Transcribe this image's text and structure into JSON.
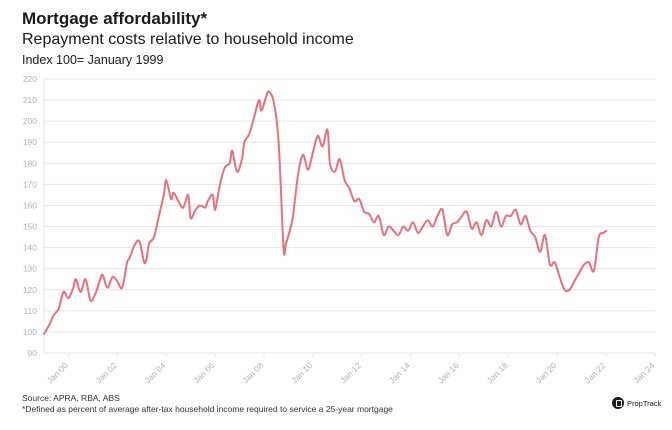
{
  "header": {
    "title": "Mortgage affordability*",
    "subtitle": "Repayment costs relative to household income",
    "note": "Index 100= January 1999"
  },
  "footer": {
    "source": "Source: APRA, RBA, ABS",
    "footnote": "*Defined as percent of average after-tax household income required to service a 25-year mortgage",
    "brand": "PropTrack"
  },
  "colors": {
    "line": "#e8707a",
    "grid": "#e6e6e6",
    "tick": "#b3b3b3"
  },
  "chart_data": {
    "type": "line",
    "title": "Mortgage affordability*",
    "subtitle": "Repayment costs relative to household income",
    "xlabel": "",
    "ylabel": "",
    "ylim": [
      90,
      220
    ],
    "xlim": [
      1999.0,
      2024.0
    ],
    "y_ticks": [
      90,
      100,
      110,
      120,
      130,
      140,
      150,
      160,
      170,
      180,
      190,
      200,
      210,
      220
    ],
    "x_ticks": [
      {
        "x": 2000,
        "label": "Jan 00"
      },
      {
        "x": 2002,
        "label": "Jan 02"
      },
      {
        "x": 2004,
        "label": "Jan 04"
      },
      {
        "x": 2006,
        "label": "Jan 06"
      },
      {
        "x": 2008,
        "label": "Jan 08"
      },
      {
        "x": 2010,
        "label": "Jan 10"
      },
      {
        "x": 2012,
        "label": "Jan 12"
      },
      {
        "x": 2014,
        "label": "Jan 14"
      },
      {
        "x": 2016,
        "label": "Jan 16"
      },
      {
        "x": 2018,
        "label": "Jan 18"
      },
      {
        "x": 2020,
        "label": "Jan 20"
      },
      {
        "x": 2022,
        "label": "Jan 22"
      },
      {
        "x": 2024,
        "label": "Jan 24"
      }
    ],
    "grid": true,
    "legend": "none",
    "series": [
      {
        "x": [
          1999.0,
          1999.2,
          1999.4,
          1999.6,
          1999.8,
          2000.0,
          2000.2,
          2000.3,
          2000.5,
          2000.7,
          2000.9,
          2001.1,
          2001.3,
          2001.4,
          2001.6,
          2001.8,
          2002.0,
          2002.2,
          2002.4,
          2002.5,
          2002.7,
          2002.9,
          2003.1,
          2003.2,
          2003.3,
          2003.5,
          2003.7,
          2003.9,
          2004.0,
          2004.2,
          2004.3,
          2004.5,
          2004.7,
          2004.9,
          2005.0,
          2005.2,
          2005.4,
          2005.6,
          2005.7,
          2005.9,
          2006.0,
          2006.2,
          2006.4,
          2006.6,
          2006.7,
          2006.9,
          2007.1,
          2007.2,
          2007.4,
          2007.6,
          2007.8,
          2007.9,
          2008.1,
          2008.2,
          2008.4,
          2008.6,
          2008.8,
          2008.9,
          2009.1,
          2009.2,
          2009.4,
          2009.6,
          2009.8,
          2010.0,
          2010.2,
          2010.4,
          2010.6,
          2010.7,
          2010.9,
          2011.1,
          2011.3,
          2011.5,
          2011.7,
          2011.9,
          2012.1,
          2012.3,
          2012.5,
          2012.7,
          2012.9,
          2013.1,
          2013.3,
          2013.5,
          2013.7,
          2013.9,
          2014.1,
          2014.3,
          2014.5,
          2014.7,
          2014.9,
          2015.1,
          2015.3,
          2015.5,
          2015.7,
          2015.9,
          2016.1,
          2016.3,
          2016.5,
          2016.7,
          2016.9,
          2017.1,
          2017.3,
          2017.5,
          2017.7,
          2017.9,
          2018.1,
          2018.3,
          2018.5,
          2018.7,
          2018.9,
          2019.1,
          2019.3,
          2019.5,
          2019.7,
          2019.9,
          2020.1,
          2020.3,
          2020.5,
          2020.7,
          2020.9,
          2021.1,
          2021.3,
          2021.5,
          2021.7,
          2021.9,
          2022.0
        ],
        "values": [
          99,
          103,
          108,
          111,
          119,
          116,
          121,
          125,
          119,
          125,
          115,
          118,
          125,
          127,
          121,
          126,
          124,
          121,
          133,
          135,
          141,
          143,
          133,
          135,
          142,
          145,
          155,
          165,
          172,
          163,
          166,
          162,
          159,
          165,
          154,
          158,
          160,
          159,
          162,
          165,
          158,
          170,
          178,
          180,
          186,
          176,
          182,
          190,
          194,
          202,
          210,
          205,
          212,
          214,
          209,
          190,
          140,
          142,
          150,
          156,
          175,
          184,
          177,
          185,
          193,
          188,
          196,
          180,
          176,
          182,
          172,
          168,
          162,
          163,
          157,
          156,
          152,
          155,
          146,
          150,
          148,
          146,
          150,
          148,
          152,
          147,
          150,
          153,
          150,
          155,
          158,
          146,
          151,
          152,
          155,
          157,
          149,
          152,
          146,
          153,
          150,
          157,
          150,
          155,
          155,
          158,
          151,
          155,
          148,
          145,
          138,
          146,
          132,
          133,
          126,
          120,
          120,
          124,
          128,
          132,
          133,
          129,
          145,
          147,
          148
        ]
      }
    ]
  }
}
